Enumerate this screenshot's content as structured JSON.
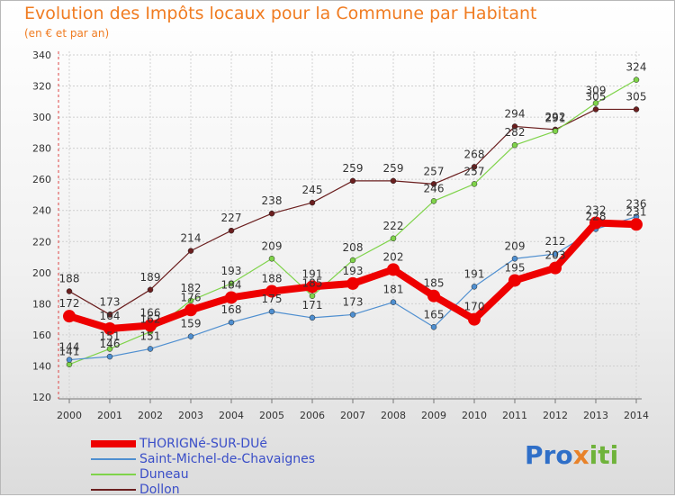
{
  "title": "Evolution des Impôts locaux pour la Commune par Habitant",
  "subtitle": "(en € et par an)",
  "brand": {
    "part1": "Pro",
    "part2": "x",
    "part3": "iti"
  },
  "chart_data": {
    "type": "line",
    "title": "Evolution des Impôts locaux pour la Commune par Habitant",
    "subtitle": "(en € et par an)",
    "xlabel": "",
    "ylabel": "",
    "categories": [
      "2000",
      "2001",
      "2002",
      "2003",
      "2004",
      "2005",
      "2006",
      "2007",
      "2008",
      "2009",
      "2010",
      "2011",
      "2012",
      "2013",
      "2014"
    ],
    "ylim": [
      120,
      340
    ],
    "yticks": [
      120,
      140,
      160,
      180,
      200,
      220,
      240,
      260,
      280,
      300,
      320,
      340
    ],
    "grid": true,
    "legend": "bottom-left",
    "series": [
      {
        "name": "THORIGNé-SUR-DUé",
        "color": "#ee0000",
        "values": [
          172,
          164,
          166,
          176,
          184,
          188,
          191,
          193,
          202,
          185,
          170,
          195,
          203,
          232,
          231
        ]
      },
      {
        "name": "Saint-Michel-de-Chavaignes",
        "color": "#4f8fd0",
        "values": [
          144,
          146,
          151,
          159,
          168,
          175,
          171,
          173,
          181,
          165,
          191,
          209,
          212,
          228,
          236
        ]
      },
      {
        "name": "Duneau",
        "color": "#7fd34a",
        "values": [
          141,
          151,
          162,
          182,
          193,
          209,
          185,
          208,
          222,
          246,
          257,
          282,
          291,
          309,
          324
        ]
      },
      {
        "name": "Dollon",
        "color": "#6b1f1f",
        "values": [
          188,
          173,
          189,
          214,
          227,
          238,
          245,
          259,
          259,
          257,
          268,
          294,
          292,
          305,
          305
        ]
      }
    ]
  }
}
